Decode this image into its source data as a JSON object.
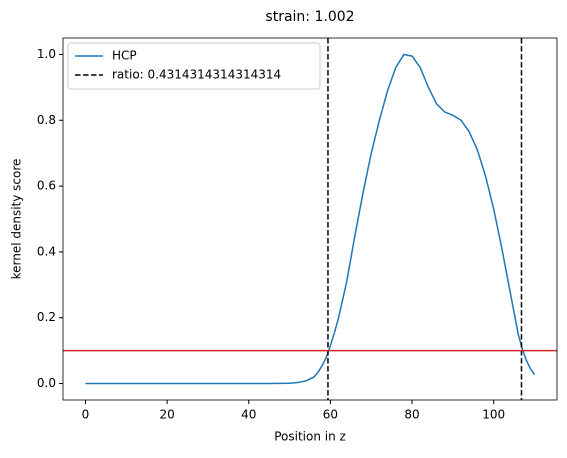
{
  "chart_data": {
    "type": "line",
    "title": "strain: 1.002",
    "xlabel": "Position in z",
    "ylabel": "kernel density score",
    "x": [
      0,
      10,
      20,
      30,
      40,
      45,
      50,
      52,
      54,
      56,
      57,
      58,
      59,
      60,
      61,
      62,
      64,
      66,
      68,
      70,
      72,
      74,
      76,
      78,
      80,
      82,
      84,
      86,
      88,
      90,
      92,
      94,
      96,
      98,
      100,
      102,
      104,
      106,
      107,
      108,
      109,
      110
    ],
    "series": [
      {
        "name": "HCP",
        "color": "#1f77b4",
        "values": [
          0,
          0,
          0,
          0,
          0,
          0,
          0.001,
          0.003,
          0.008,
          0.02,
          0.035,
          0.055,
          0.08,
          0.115,
          0.155,
          0.2,
          0.31,
          0.45,
          0.58,
          0.7,
          0.8,
          0.89,
          0.96,
          1.0,
          0.995,
          0.96,
          0.9,
          0.85,
          0.825,
          0.815,
          0.8,
          0.765,
          0.71,
          0.63,
          0.53,
          0.41,
          0.28,
          0.15,
          0.105,
          0.07,
          0.045,
          0.027
        ]
      }
    ],
    "vlines": {
      "name": "ratio: 0.4314314314314314",
      "color": "#000000",
      "values": [
        59.4,
        106.8
      ]
    },
    "hline": {
      "value": 0.1,
      "color": "#d62728"
    },
    "xlim": [
      -5.5,
      115.5
    ],
    "ylim": [
      -0.05,
      1.05
    ],
    "xticks": [
      0,
      20,
      40,
      60,
      80,
      100
    ],
    "yticks": [
      {
        "value": 0,
        "label": "0.0"
      },
      {
        "value": 0.2,
        "label": "0.2"
      },
      {
        "value": 0.4,
        "label": "0.4"
      },
      {
        "value": 0.6,
        "label": "0.6"
      },
      {
        "value": 0.8,
        "label": "0.8"
      },
      {
        "value": 1.0,
        "label": "1.0"
      }
    ],
    "legend": "upper left"
  }
}
